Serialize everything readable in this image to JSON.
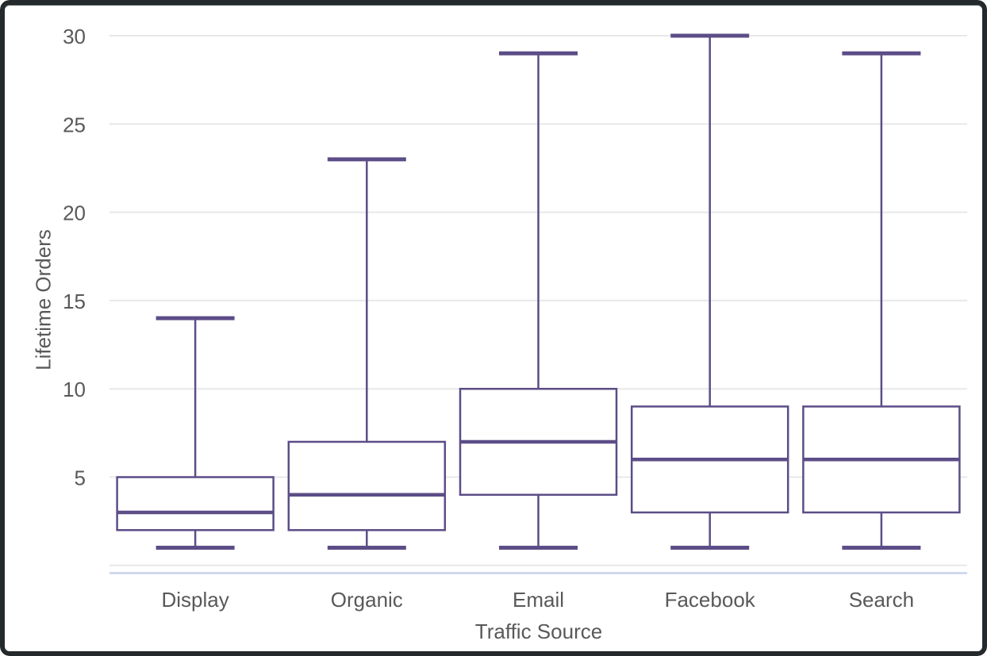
{
  "chart_data": {
    "type": "boxplot",
    "title": "",
    "xlabel": "Traffic Source",
    "ylabel": "Lifetime Orders",
    "categories": [
      "Display",
      "Organic",
      "Email",
      "Facebook",
      "Search"
    ],
    "boxes": [
      {
        "category": "Display",
        "min": 1,
        "q1": 2,
        "median": 3,
        "q3": 5,
        "max": 14
      },
      {
        "category": "Organic",
        "min": 1,
        "q1": 2,
        "median": 4,
        "q3": 7,
        "max": 23
      },
      {
        "category": "Email",
        "min": 1,
        "q1": 4,
        "median": 7,
        "q3": 10,
        "max": 29
      },
      {
        "category": "Facebook",
        "min": 1,
        "q1": 3,
        "median": 6,
        "q3": 9,
        "max": 30
      },
      {
        "category": "Search",
        "min": 1,
        "q1": 3,
        "median": 6,
        "q3": 9,
        "max": 29
      }
    ],
    "y_ticks": [
      5,
      10,
      15,
      20,
      25,
      30
    ],
    "ylim": [
      0,
      30
    ],
    "grid": "horizontal",
    "legend": "none",
    "colors": {
      "box_stroke": "#5c4d87",
      "box_fill": "#ffffff",
      "gridline": "#e8e8e8",
      "axis_line": "#c8d4ea",
      "text": "#595959",
      "frame": "#24292b",
      "background": "#ffffff"
    }
  }
}
